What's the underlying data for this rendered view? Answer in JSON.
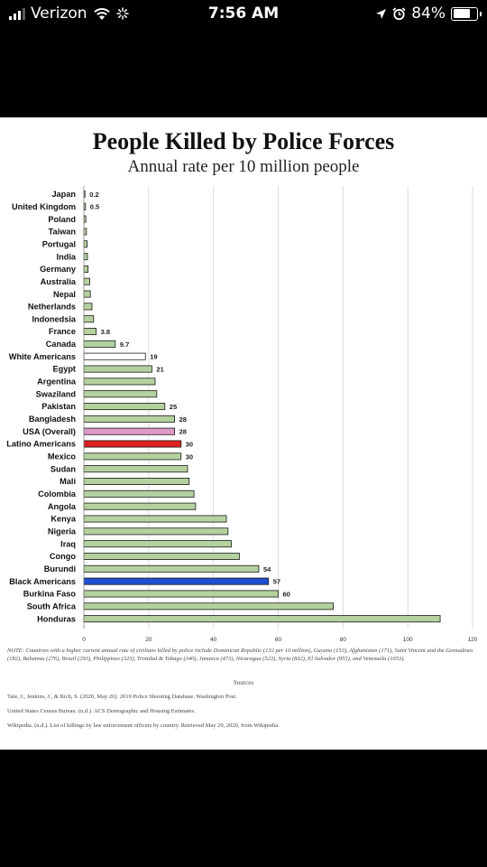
{
  "status_bar": {
    "carrier": "Verizon",
    "time": "7:56 AM",
    "battery_percent": "84%",
    "battery_level": 0.84,
    "icons": [
      "signal-bars-icon",
      "wifi-icon",
      "activity-spinner-icon",
      "location-arrow-icon",
      "alarm-clock-icon",
      "battery-icon"
    ]
  },
  "chart_data": {
    "type": "bar",
    "orientation": "horizontal",
    "title": "People Killed by Police Forces",
    "subtitle": "Annual rate per 10 million people",
    "categories": [
      "Japan",
      "United Kingdom",
      "Poland",
      "Taiwan",
      "Portugal",
      "India",
      "Germany",
      "Australia",
      "Nepal",
      "Netherlands",
      "Indonedsia",
      "France",
      "Canada",
      "White Americans",
      "Egypt",
      "Argentina",
      "Swaziland",
      "Pakistan",
      "Bangladesh",
      "USA (Overall)",
      "Latino Americans",
      "Mexico",
      "Sudan",
      "Mali",
      "Colombia",
      "Angola",
      "Kenya",
      "Nigeria",
      "Iraq",
      "Congo",
      "Burundi",
      "Black Americans",
      "Burkina Faso",
      "South Africa",
      "Honduras"
    ],
    "values": [
      0.2,
      0.5,
      0.6,
      0.8,
      1.0,
      1.1,
      1.3,
      1.8,
      2.0,
      2.5,
      3.0,
      3.8,
      9.7,
      19,
      21,
      22,
      22.5,
      25,
      28,
      28,
      30,
      30,
      32,
      32.5,
      34,
      34.5,
      44,
      44.5,
      45.5,
      48,
      54,
      57,
      60,
      77,
      110
    ],
    "value_labels": [
      "0.2",
      "0.5",
      "",
      "",
      "",
      "",
      "",
      "",
      "",
      "",
      "",
      "3.8",
      "9.7",
      "19",
      "21",
      "",
      "",
      "25",
      "28",
      "28",
      "30",
      "30",
      "",
      "",
      "",
      "",
      "",
      "",
      "",
      "",
      "54",
      "57",
      "60",
      "",
      ""
    ],
    "colors": [
      "#b4d19f",
      "#b4d19f",
      "#b4d19f",
      "#b4d19f",
      "#b4d19f",
      "#b4d19f",
      "#b4d19f",
      "#b4d19f",
      "#b4d19f",
      "#b4d19f",
      "#b4d19f",
      "#b4d19f",
      "#b4d19f",
      "#ffffff",
      "#b4d19f",
      "#b4d19f",
      "#b4d19f",
      "#b4d19f",
      "#b4d19f",
      "#e09ac8",
      "#dd2020",
      "#b4d19f",
      "#b4d19f",
      "#b4d19f",
      "#b4d19f",
      "#b4d19f",
      "#b4d19f",
      "#b4d19f",
      "#b4d19f",
      "#b4d19f",
      "#b4d19f",
      "#1f4fd0",
      "#b4d19f",
      "#b4d19f",
      "#b4d19f"
    ],
    "xlim": [
      0,
      120
    ],
    "xticks": [
      0,
      20,
      40,
      60,
      80,
      100,
      120
    ],
    "grid": true,
    "xlabel": "",
    "ylabel": ""
  },
  "footer": {
    "note": "NOTE: Countries with a higher current annual rate of civilians killed by police include Dominican Republic (132 per 10 million), Guyana (153), Afghanistan (171), Saint Vincent and the Grenadines (182), Bahamas (276), Brazil (293), Philippines (323), Trinidad & Tobago (340), Jamaica (473), Nicaragua (523), Syria (832), El Salvador (955), and Venezuela (1653).",
    "sources_heading": "Sources",
    "source_1": "Tate, J., Jenkins, J., & Rich, S. (2020, May 26). 2019 Police Shooting Database. Washington Post.",
    "source_2": "United States Census Bureau. (n.d.). ACS Demographic and Housing Estimates.",
    "source_3": "Wikipedia. (n.d.). List of killings by law enforcement officers by country. Retrieved May 29, 2020, from Wikipedia."
  }
}
